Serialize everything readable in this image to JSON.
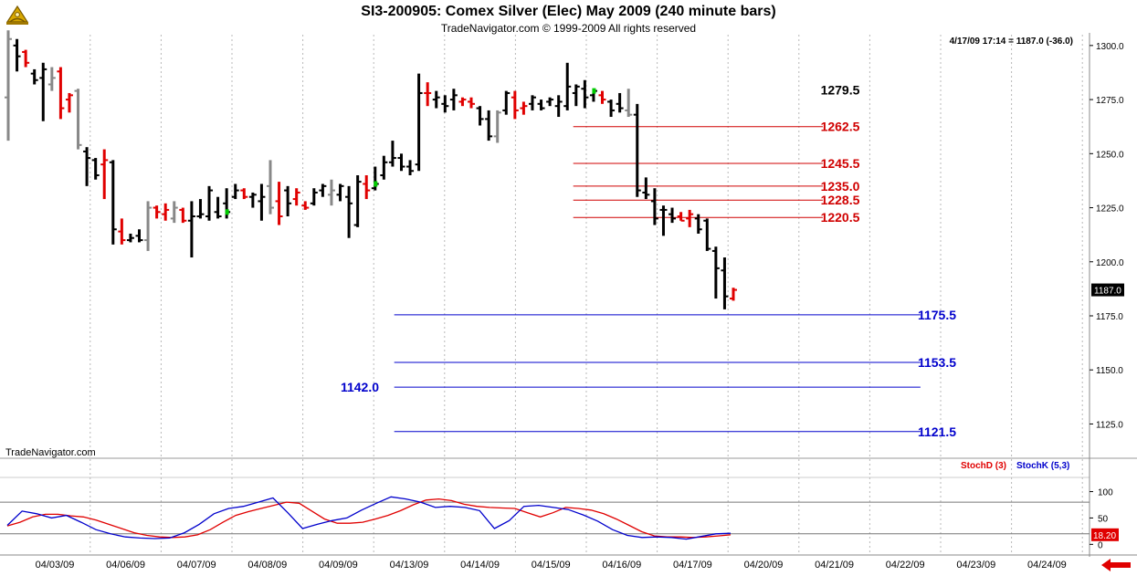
{
  "header": {
    "title": "SI3-200905:  Comex Silver (Elec) May 2009  (240 minute bars)",
    "copyright": "TradeNavigator.com © 1999-2009 All rights reserved",
    "datetime_readout": "4/17/09 17:14 = 1187.0 (-36.0)",
    "watermark": "TradeNavigator.com"
  },
  "colors": {
    "up_bar": "#000000",
    "down_bar": "#e00000",
    "neutral_bar": "#888888",
    "highlight_bar": "#00cc00",
    "resistance": "#d00000",
    "support": "#0000cc",
    "stoch_d": "#e00000",
    "stoch_k": "#0000cc",
    "background": "#ffffff"
  },
  "icons": {
    "logo": "sextant-logo-icon",
    "scroll": "red-left-arrow-icon"
  },
  "chart_data": [
    {
      "type": "ohlc",
      "title": "SI3-200905:  Comex Silver (Elec) May 2009  (240 minute bars)",
      "ylim": [
        1110,
        1305
      ],
      "yticks": [
        "1300.0",
        "1275.0",
        "1250.0",
        "1225.0",
        "1200.0",
        "1175.0",
        "1150.0",
        "1125.0"
      ],
      "ytick_values": [
        1300,
        1275,
        1250,
        1225,
        1200,
        1175,
        1150,
        1125
      ],
      "xticks": [
        "04/03/09",
        "04/06/09",
        "04/07/09",
        "04/08/09",
        "04/09/09",
        "04/13/09",
        "04/14/09",
        "04/15/09",
        "04/16/09",
        "04/17/09",
        "04/20/09",
        "04/21/09",
        "04/22/09",
        "04/23/09",
        "04/24/09"
      ],
      "last_price_label": "1187.0",
      "bars": [
        {
          "h": 1307,
          "l": 1256,
          "o": 1276,
          "c": 1303,
          "k": "g"
        },
        {
          "h": 1303,
          "l": 1288,
          "o": 1300,
          "c": 1295,
          "k": "b"
        },
        {
          "h": 1298,
          "l": 1290,
          "o": 1297,
          "c": 1292,
          "k": "r"
        },
        {
          "h": 1289,
          "l": 1282,
          "o": 1287,
          "c": 1284,
          "k": "b"
        },
        {
          "h": 1292,
          "l": 1265,
          "o": 1285,
          "c": 1289,
          "k": "b"
        },
        {
          "h": 1290,
          "l": 1279,
          "o": 1282,
          "c": 1285,
          "k": "g"
        },
        {
          "h": 1290,
          "l": 1266,
          "o": 1288,
          "c": 1271,
          "k": "r"
        },
        {
          "h": 1278,
          "l": 1269,
          "o": 1275,
          "c": 1277,
          "k": "r"
        },
        {
          "h": 1280,
          "l": 1252,
          "o": 1279,
          "c": 1254,
          "k": "g"
        },
        {
          "h": 1253,
          "l": 1235,
          "o": 1251,
          "c": 1248,
          "k": "b"
        },
        {
          "h": 1248,
          "l": 1238,
          "o": 1247,
          "c": 1240,
          "k": "b"
        },
        {
          "h": 1252,
          "l": 1229,
          "o": 1245,
          "c": 1247,
          "k": "r"
        },
        {
          "h": 1247,
          "l": 1208,
          "o": 1246,
          "c": 1215,
          "k": "b"
        },
        {
          "h": 1220,
          "l": 1208,
          "o": 1214,
          "c": 1210,
          "k": "r"
        },
        {
          "h": 1213,
          "l": 1209,
          "o": 1210,
          "c": 1211,
          "k": "b"
        },
        {
          "h": 1215,
          "l": 1209,
          "o": 1212,
          "c": 1210,
          "k": "b"
        },
        {
          "h": 1228,
          "l": 1205,
          "o": 1210,
          "c": 1225,
          "k": "g"
        },
        {
          "h": 1226,
          "l": 1220,
          "o": 1225,
          "c": 1223,
          "k": "r"
        },
        {
          "h": 1227,
          "l": 1219,
          "o": 1222,
          "c": 1224,
          "k": "r"
        },
        {
          "h": 1228,
          "l": 1218,
          "o": 1220,
          "c": 1225,
          "k": "g"
        },
        {
          "h": 1225,
          "l": 1218,
          "o": 1224,
          "c": 1219,
          "k": "r"
        },
        {
          "h": 1228,
          "l": 1202,
          "o": 1219,
          "c": 1221,
          "k": "b"
        },
        {
          "h": 1229,
          "l": 1220,
          "o": 1221,
          "c": 1222,
          "k": "b"
        },
        {
          "h": 1235,
          "l": 1219,
          "o": 1221,
          "c": 1233,
          "k": "b"
        },
        {
          "h": 1230,
          "l": 1220,
          "o": 1223,
          "c": 1221,
          "k": "b"
        },
        {
          "h": 1234,
          "l": 1220,
          "o": 1227,
          "c": 1223,
          "k": "G"
        },
        {
          "h": 1236,
          "l": 1229,
          "o": 1230,
          "c": 1233,
          "k": "b"
        },
        {
          "h": 1234,
          "l": 1229,
          "o": 1233,
          "c": 1230,
          "k": "r"
        },
        {
          "h": 1232,
          "l": 1225,
          "o": 1230,
          "c": 1231,
          "k": "b"
        },
        {
          "h": 1236,
          "l": 1219,
          "o": 1228,
          "c": 1230,
          "k": "b"
        },
        {
          "h": 1247,
          "l": 1222,
          "o": 1235,
          "c": 1225,
          "k": "g"
        },
        {
          "h": 1237,
          "l": 1217,
          "o": 1228,
          "c": 1221,
          "k": "r"
        },
        {
          "h": 1235,
          "l": 1221,
          "o": 1233,
          "c": 1227,
          "k": "b"
        },
        {
          "h": 1234,
          "l": 1226,
          "o": 1229,
          "c": 1232,
          "k": "r"
        },
        {
          "h": 1228,
          "l": 1224,
          "o": 1226,
          "c": 1225,
          "k": "r"
        },
        {
          "h": 1234,
          "l": 1226,
          "o": 1227,
          "c": 1232,
          "k": "b"
        },
        {
          "h": 1236,
          "l": 1230,
          "o": 1233,
          "c": 1235,
          "k": "b"
        },
        {
          "h": 1238,
          "l": 1226,
          "o": 1231,
          "c": 1233,
          "k": "g"
        },
        {
          "h": 1236,
          "l": 1228,
          "o": 1231,
          "c": 1235,
          "k": "b"
        },
        {
          "h": 1235,
          "l": 1211,
          "o": 1230,
          "c": 1227,
          "k": "b"
        },
        {
          "h": 1240,
          "l": 1216,
          "o": 1217,
          "c": 1237,
          "k": "b"
        },
        {
          "h": 1240,
          "l": 1229,
          "o": 1236,
          "c": 1233,
          "k": "r"
        },
        {
          "h": 1244,
          "l": 1233,
          "o": 1234,
          "c": 1236,
          "k": "G"
        },
        {
          "h": 1249,
          "l": 1238,
          "o": 1240,
          "c": 1246,
          "k": "b"
        },
        {
          "h": 1256,
          "l": 1244,
          "o": 1246,
          "c": 1248,
          "k": "b"
        },
        {
          "h": 1250,
          "l": 1242,
          "o": 1248,
          "c": 1244,
          "k": "b"
        },
        {
          "h": 1247,
          "l": 1240,
          "o": 1244,
          "c": 1242,
          "k": "b"
        },
        {
          "h": 1287,
          "l": 1242,
          "o": 1245,
          "c": 1278,
          "k": "b"
        },
        {
          "h": 1283,
          "l": 1272,
          "o": 1278,
          "c": 1278,
          "k": "r"
        },
        {
          "h": 1279,
          "l": 1271,
          "o": 1275,
          "c": 1276,
          "k": "b"
        },
        {
          "h": 1277,
          "l": 1269,
          "o": 1273,
          "c": 1272,
          "k": "b"
        },
        {
          "h": 1280,
          "l": 1270,
          "o": 1275,
          "c": 1277,
          "k": "b"
        },
        {
          "h": 1276,
          "l": 1272,
          "o": 1274,
          "c": 1275,
          "k": "r"
        },
        {
          "h": 1276,
          "l": 1271,
          "o": 1274,
          "c": 1273,
          "k": "r"
        },
        {
          "h": 1272,
          "l": 1263,
          "o": 1271,
          "c": 1266,
          "k": "b"
        },
        {
          "h": 1270,
          "l": 1256,
          "o": 1266,
          "c": 1258,
          "k": "b"
        },
        {
          "h": 1270,
          "l": 1255,
          "o": 1258,
          "c": 1269,
          "k": "g"
        },
        {
          "h": 1279,
          "l": 1268,
          "o": 1270,
          "c": 1278,
          "k": "b"
        },
        {
          "h": 1279,
          "l": 1266,
          "o": 1276,
          "c": 1270,
          "k": "r"
        },
        {
          "h": 1274,
          "l": 1268,
          "o": 1271,
          "c": 1272,
          "k": "r"
        },
        {
          "h": 1277,
          "l": 1270,
          "o": 1273,
          "c": 1276,
          "k": "b"
        },
        {
          "h": 1275,
          "l": 1270,
          "o": 1273,
          "c": 1271,
          "k": "b"
        },
        {
          "h": 1276,
          "l": 1272,
          "o": 1274,
          "c": 1275,
          "k": "b"
        },
        {
          "h": 1277,
          "l": 1267,
          "o": 1272,
          "c": 1274,
          "k": "b"
        },
        {
          "h": 1292,
          "l": 1270,
          "o": 1272,
          "c": 1281,
          "k": "b"
        },
        {
          "h": 1282,
          "l": 1272,
          "o": 1278,
          "c": 1281,
          "k": "b"
        },
        {
          "h": 1284,
          "l": 1271,
          "o": 1280,
          "c": 1276,
          "k": "b"
        },
        {
          "h": 1278,
          "l": 1274,
          "o": 1277,
          "c": 1279,
          "k": "G"
        },
        {
          "h": 1279,
          "l": 1273,
          "o": 1277,
          "c": 1275,
          "k": "r"
        },
        {
          "h": 1275,
          "l": 1267,
          "o": 1274,
          "c": 1270,
          "k": "b"
        },
        {
          "h": 1278,
          "l": 1269,
          "o": 1273,
          "c": 1271,
          "k": "b"
        },
        {
          "h": 1280,
          "l": 1267,
          "o": 1270,
          "c": 1268,
          "k": "g"
        },
        {
          "h": 1273,
          "l": 1230,
          "o": 1268,
          "c": 1233,
          "k": "b"
        },
        {
          "h": 1239,
          "l": 1229,
          "o": 1232,
          "c": 1231,
          "k": "b"
        },
        {
          "h": 1234,
          "l": 1217,
          "o": 1228,
          "c": 1220,
          "k": "b"
        },
        {
          "h": 1226,
          "l": 1212,
          "o": 1224,
          "c": 1224,
          "k": "b"
        },
        {
          "h": 1225,
          "l": 1218,
          "o": 1222,
          "c": 1220,
          "k": "b"
        },
        {
          "h": 1223,
          "l": 1219,
          "o": 1221,
          "c": 1219,
          "k": "r"
        },
        {
          "h": 1224,
          "l": 1216,
          "o": 1220,
          "c": 1222,
          "k": "r"
        },
        {
          "h": 1222,
          "l": 1213,
          "o": 1220,
          "c": 1215,
          "k": "b"
        },
        {
          "h": 1220,
          "l": 1205,
          "o": 1219,
          "c": 1206,
          "k": "b"
        },
        {
          "h": 1207,
          "l": 1183,
          "o": 1205,
          "c": 1197,
          "k": "b"
        },
        {
          "h": 1202,
          "l": 1178,
          "o": 1196,
          "c": 1184,
          "k": "b"
        },
        {
          "h": 1188,
          "l": 1182,
          "o": 1183,
          "c": 1187,
          "k": "r"
        }
      ],
      "levels": [
        {
          "value": 1279.5,
          "label": "1279.5",
          "color": "#000000",
          "line": false,
          "side": "right-mid"
        },
        {
          "value": 1262.5,
          "label": "1262.5",
          "color": "#d00000",
          "line": true,
          "from": 0.525,
          "to": 0.755,
          "side": "right-mid"
        },
        {
          "value": 1245.5,
          "label": "1245.5",
          "color": "#d00000",
          "line": true,
          "from": 0.525,
          "to": 0.755,
          "side": "right-mid"
        },
        {
          "value": 1235.0,
          "label": "1235.0",
          "color": "#d00000",
          "line": true,
          "from": 0.525,
          "to": 0.755,
          "side": "right-mid"
        },
        {
          "value": 1228.5,
          "label": "1228.5",
          "color": "#d00000",
          "line": true,
          "from": 0.525,
          "to": 0.755,
          "side": "right-mid"
        },
        {
          "value": 1220.5,
          "label": "1220.5",
          "color": "#d00000",
          "line": true,
          "from": 0.525,
          "to": 0.755,
          "side": "right-mid"
        },
        {
          "value": 1175.5,
          "label": "1175.5",
          "color": "#0000cc",
          "line": true,
          "from": 0.36,
          "to": 0.845,
          "side": "right"
        },
        {
          "value": 1153.5,
          "label": "1153.5",
          "color": "#0000cc",
          "line": true,
          "from": 0.36,
          "to": 0.845,
          "side": "right"
        },
        {
          "value": 1142.0,
          "label": "1142.0",
          "color": "#0000cc",
          "line": true,
          "from": 0.36,
          "to": 0.845,
          "side": "left"
        },
        {
          "value": 1121.5,
          "label": "1121.5",
          "color": "#0000cc",
          "line": true,
          "from": 0.36,
          "to": 0.845,
          "side": "right"
        }
      ]
    },
    {
      "type": "line",
      "title": "",
      "ylim": [
        -15,
        120
      ],
      "yticks": [
        "100",
        "50",
        "0"
      ],
      "ytick_values": [
        100,
        50,
        0
      ],
      "reference_lines": [
        80,
        20
      ],
      "last_value_label": "18.20",
      "series": [
        {
          "name": "StochD (3)",
          "color": "#e00000",
          "values": [
            35,
            42,
            52,
            57,
            57,
            54,
            52,
            46,
            38,
            30,
            22,
            17,
            14,
            13,
            14,
            18,
            28,
            42,
            55,
            62,
            68,
            74,
            80,
            78,
            63,
            48,
            40,
            40,
            42,
            48,
            55,
            64,
            75,
            84,
            86,
            83,
            76,
            72,
            70,
            69,
            68,
            60,
            52,
            60,
            70,
            68,
            65,
            58,
            48,
            36,
            24,
            16,
            14,
            14,
            13,
            14,
            16,
            18
          ]
        },
        {
          "name": "StochK (5,3)",
          "color": "#0000cc",
          "values": [
            36,
            63,
            58,
            50,
            55,
            42,
            28,
            20,
            14,
            12,
            11,
            12,
            22,
            38,
            58,
            68,
            72,
            80,
            88,
            60,
            30,
            38,
            45,
            50,
            65,
            78,
            90,
            86,
            80,
            70,
            72,
            70,
            64,
            30,
            45,
            72,
            74,
            70,
            66,
            56,
            44,
            28,
            17,
            13,
            14,
            13,
            10,
            15,
            20,
            21
          ]
        }
      ]
    }
  ]
}
